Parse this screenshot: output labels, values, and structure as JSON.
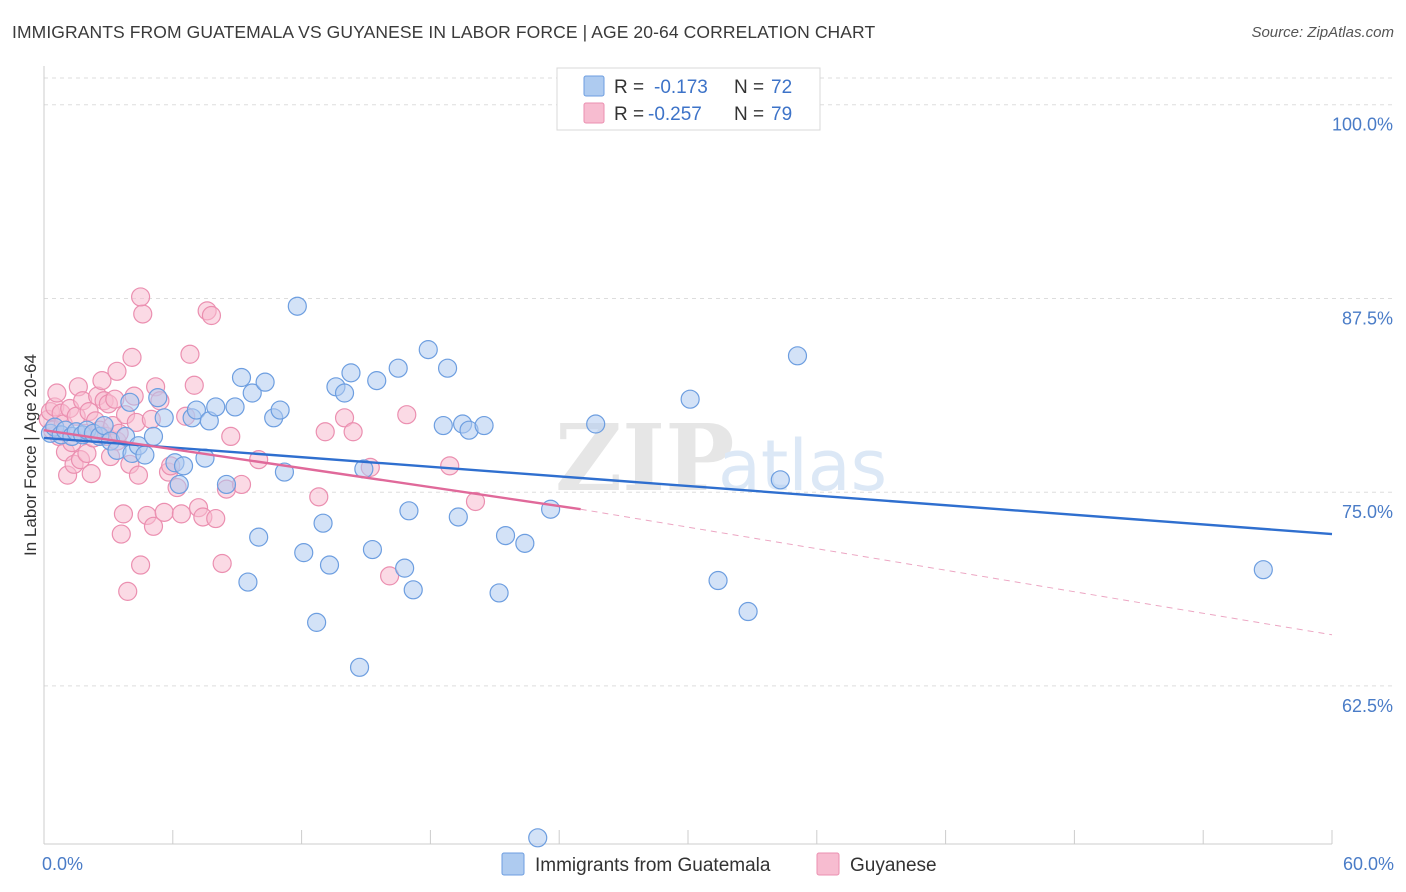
{
  "header": {
    "title": "IMMIGRANTS FROM GUATEMALA VS GUYANESE IN LABOR FORCE | AGE 20-64 CORRELATION CHART",
    "source": "Source: ZipAtlas.com"
  },
  "watermark": {
    "part1": "ZIP",
    "part2": "atlas"
  },
  "colors": {
    "blue_fill": "#aecbf0",
    "blue_stroke": "#6d9ee0",
    "blue_line": "#2f6fcf",
    "pink_fill": "#f7bcd0",
    "pink_stroke": "#eb8fb0",
    "pink_line": "#e0699a",
    "tick_text": "#4a7cc7",
    "grid": "#dddddd"
  },
  "legend": {
    "rows": [
      {
        "series": "blue",
        "r_label": "R =",
        "r_value": "-0.173",
        "n_label": "N =",
        "n_value": "72"
      },
      {
        "series": "pink",
        "r_label": "R =",
        "r_value": "-0.257",
        "n_label": "N =",
        "n_value": "79"
      }
    ]
  },
  "chart_data": {
    "type": "scatter",
    "title": "IMMIGRANTS FROM GUATEMALA VS GUYANESE IN LABOR FORCE | AGE 20-64 CORRELATION CHART",
    "ylabel": "In Labor Force | Age 20-64",
    "xlabel": "",
    "xlim": [
      0,
      60
    ],
    "ylim": [
      52.3,
      102.5
    ],
    "x_tick_labels": [
      {
        "value": 0,
        "label": "0.0%"
      },
      {
        "value": 60,
        "label": "60.0%"
      }
    ],
    "x_minor_ticks": [
      0,
      6,
      12,
      18,
      24,
      30,
      36,
      42,
      48,
      54,
      60
    ],
    "y_ticks": [
      {
        "value": 100,
        "label": "100.0%"
      },
      {
        "value": 87.5,
        "label": "87.5%"
      },
      {
        "value": 75,
        "label": "75.0%"
      },
      {
        "value": 62.5,
        "label": "62.5%"
      }
    ],
    "series": [
      {
        "name": "Immigrants from Guatemala",
        "color": "blue",
        "trend": {
          "x0": 0,
          "y0": 78.5,
          "x1": 60,
          "y1": 72.3
        },
        "points": [
          [
            0.3,
            78.8
          ],
          [
            0.5,
            79.2
          ],
          [
            0.8,
            78.7
          ],
          [
            1.0,
            79.0
          ],
          [
            1.3,
            78.6
          ],
          [
            1.5,
            78.9
          ],
          [
            1.8,
            78.7
          ],
          [
            2.0,
            79.0
          ],
          [
            2.3,
            78.8
          ],
          [
            2.6,
            78.6
          ],
          [
            2.8,
            79.3
          ],
          [
            3.1,
            78.3
          ],
          [
            3.4,
            77.7
          ],
          [
            3.8,
            78.6
          ],
          [
            4.0,
            80.8
          ],
          [
            4.1,
            77.5
          ],
          [
            4.4,
            78.0
          ],
          [
            4.7,
            77.4
          ],
          [
            5.1,
            78.6
          ],
          [
            5.3,
            81.1
          ],
          [
            5.6,
            79.8
          ],
          [
            6.1,
            76.9
          ],
          [
            6.3,
            75.5
          ],
          [
            6.5,
            76.7
          ],
          [
            6.9,
            79.8
          ],
          [
            7.1,
            80.3
          ],
          [
            7.5,
            77.2
          ],
          [
            7.7,
            79.6
          ],
          [
            8.0,
            80.5
          ],
          [
            8.5,
            75.5
          ],
          [
            8.9,
            80.5
          ],
          [
            9.2,
            82.4
          ],
          [
            9.5,
            69.2
          ],
          [
            9.7,
            81.4
          ],
          [
            10.0,
            72.1
          ],
          [
            10.3,
            82.1
          ],
          [
            10.7,
            79.8
          ],
          [
            11.0,
            80.3
          ],
          [
            11.2,
            76.3
          ],
          [
            11.8,
            87.0
          ],
          [
            12.1,
            71.1
          ],
          [
            12.7,
            66.6
          ],
          [
            13.0,
            73.0
          ],
          [
            13.3,
            70.3
          ],
          [
            13.6,
            81.8
          ],
          [
            14.0,
            81.4
          ],
          [
            14.3,
            82.7
          ],
          [
            14.7,
            63.7
          ],
          [
            14.9,
            76.5
          ],
          [
            15.3,
            71.3
          ],
          [
            15.5,
            82.2
          ],
          [
            16.5,
            83.0
          ],
          [
            16.8,
            70.1
          ],
          [
            17.0,
            73.8
          ],
          [
            17.2,
            68.7
          ],
          [
            17.9,
            84.2
          ],
          [
            18.6,
            79.3
          ],
          [
            18.8,
            83.0
          ],
          [
            19.3,
            73.4
          ],
          [
            19.5,
            79.4
          ],
          [
            19.8,
            79.0
          ],
          [
            20.5,
            79.3
          ],
          [
            21.2,
            68.5
          ],
          [
            21.5,
            72.2
          ],
          [
            22.4,
            71.7
          ],
          [
            23.0,
            52.7
          ],
          [
            23.6,
            73.9
          ],
          [
            25.7,
            79.4
          ],
          [
            30.1,
            81.0
          ],
          [
            31.4,
            69.3
          ],
          [
            32.8,
            67.3
          ],
          [
            34.3,
            75.8
          ],
          [
            35.1,
            83.8
          ],
          [
            56.8,
            70.0
          ]
        ]
      },
      {
        "name": "Guyanese",
        "color": "pink",
        "trend": {
          "x0": 0,
          "y0": 79.0,
          "x1": 25,
          "y1": 73.9
        },
        "trend_dashed": {
          "x0": 25,
          "y0": 73.9,
          "x1": 60,
          "y1": 65.8
        },
        "points": [
          [
            0.2,
            79.7
          ],
          [
            0.3,
            80.2
          ],
          [
            0.4,
            79.0
          ],
          [
            0.5,
            80.5
          ],
          [
            0.6,
            81.4
          ],
          [
            0.7,
            78.6
          ],
          [
            0.8,
            80.1
          ],
          [
            0.9,
            79.4
          ],
          [
            1.0,
            77.6
          ],
          [
            1.1,
            76.1
          ],
          [
            1.2,
            80.4
          ],
          [
            1.3,
            78.2
          ],
          [
            1.4,
            76.8
          ],
          [
            1.5,
            79.9
          ],
          [
            1.6,
            81.8
          ],
          [
            1.7,
            77.1
          ],
          [
            1.8,
            80.9
          ],
          [
            1.9,
            78.8
          ],
          [
            2.0,
            77.5
          ],
          [
            2.1,
            80.2
          ],
          [
            2.2,
            76.2
          ],
          [
            2.3,
            78.5
          ],
          [
            2.4,
            79.6
          ],
          [
            2.5,
            81.2
          ],
          [
            2.6,
            79.0
          ],
          [
            2.7,
            82.2
          ],
          [
            2.8,
            80.9
          ],
          [
            2.9,
            78.6
          ],
          [
            3.0,
            80.7
          ],
          [
            3.1,
            77.3
          ],
          [
            3.2,
            79.3
          ],
          [
            3.3,
            81.0
          ],
          [
            3.4,
            78.3
          ],
          [
            3.5,
            78.8
          ],
          [
            3.6,
            72.3
          ],
          [
            3.7,
            73.6
          ],
          [
            3.8,
            80.0
          ],
          [
            3.9,
            68.6
          ],
          [
            4.0,
            76.8
          ],
          [
            4.1,
            83.7
          ],
          [
            4.2,
            81.2
          ],
          [
            4.3,
            79.5
          ],
          [
            4.4,
            76.1
          ],
          [
            4.5,
            70.3
          ],
          [
            4.6,
            86.5
          ],
          [
            4.8,
            73.5
          ],
          [
            5.0,
            79.7
          ],
          [
            5.1,
            72.8
          ],
          [
            5.2,
            81.8
          ],
          [
            5.4,
            80.9
          ],
          [
            5.6,
            73.7
          ],
          [
            5.8,
            76.3
          ],
          [
            5.9,
            76.7
          ],
          [
            6.2,
            75.3
          ],
          [
            6.4,
            73.6
          ],
          [
            6.6,
            79.9
          ],
          [
            6.8,
            83.9
          ],
          [
            7.0,
            81.9
          ],
          [
            7.2,
            74.0
          ],
          [
            7.4,
            73.4
          ],
          [
            7.6,
            86.7
          ],
          [
            7.8,
            86.4
          ],
          [
            8.0,
            73.3
          ],
          [
            8.3,
            70.4
          ],
          [
            8.5,
            75.2
          ],
          [
            8.7,
            78.6
          ],
          [
            9.2,
            75.5
          ],
          [
            10.0,
            77.1
          ],
          [
            12.8,
            74.7
          ],
          [
            13.1,
            78.9
          ],
          [
            14.0,
            79.8
          ],
          [
            14.4,
            78.9
          ],
          [
            15.2,
            76.6
          ],
          [
            16.1,
            69.6
          ],
          [
            16.9,
            80.0
          ],
          [
            18.9,
            76.7
          ],
          [
            20.1,
            74.4
          ],
          [
            4.5,
            87.6
          ],
          [
            3.4,
            82.8
          ]
        ]
      }
    ]
  },
  "bottom_legend": {
    "items": [
      {
        "label": "Immigrants from Guatemala",
        "color": "blue"
      },
      {
        "label": "Guyanese",
        "color": "pink"
      }
    ]
  }
}
